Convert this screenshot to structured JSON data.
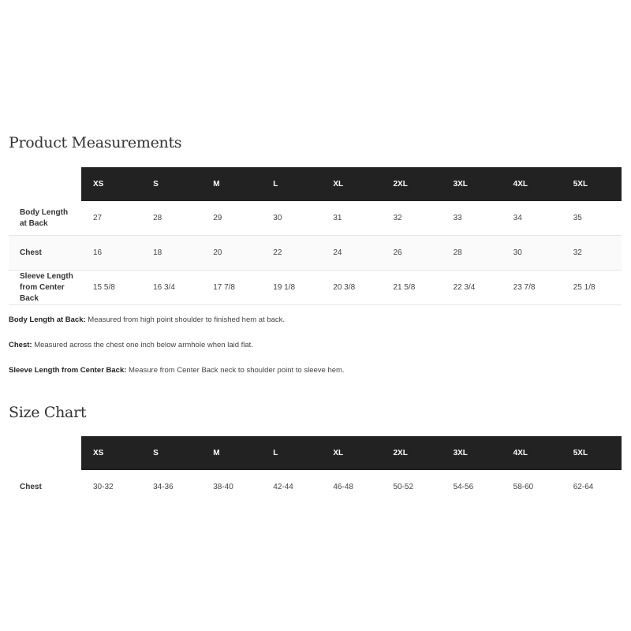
{
  "measurements": {
    "title": "Product Measurements",
    "sizes": [
      "XS",
      "S",
      "M",
      "L",
      "XL",
      "2XL",
      "3XL",
      "4XL",
      "5XL"
    ],
    "rows": [
      {
        "label": "Body Length at Back",
        "values": [
          "27",
          "28",
          "29",
          "30",
          "31",
          "32",
          "33",
          "34",
          "35"
        ]
      },
      {
        "label": "Chest",
        "values": [
          "16",
          "18",
          "20",
          "22",
          "24",
          "26",
          "28",
          "30",
          "32"
        ]
      },
      {
        "label": "Sleeve Length from Center Back",
        "values": [
          "15 5/8",
          "16 3/4",
          "17 7/8",
          "19 1/8",
          "20 3/8",
          "21 5/8",
          "22 3/4",
          "23 7/8",
          "25 1/8"
        ]
      }
    ],
    "notes": [
      {
        "term": "Body Length at Back:",
        "text": " Measured from high point shoulder to finished hem at back."
      },
      {
        "term": "Chest:",
        "text": " Measured across the chest one inch below armhole when laid flat."
      },
      {
        "term": "Sleeve Length from Center Back:",
        "text": " Measure from Center Back neck to shoulder point to sleeve hem."
      }
    ]
  },
  "size_chart": {
    "title": "Size Chart",
    "sizes": [
      "XS",
      "S",
      "M",
      "L",
      "XL",
      "2XL",
      "3XL",
      "4XL",
      "5XL"
    ],
    "rows": [
      {
        "label": "Chest",
        "values": [
          "30-32",
          "34-36",
          "38-40",
          "42-44",
          "46-48",
          "50-52",
          "54-56",
          "58-60",
          "62-64"
        ]
      }
    ]
  },
  "colors": {
    "header_bg": "#222222",
    "header_text": "#ffffff"
  }
}
